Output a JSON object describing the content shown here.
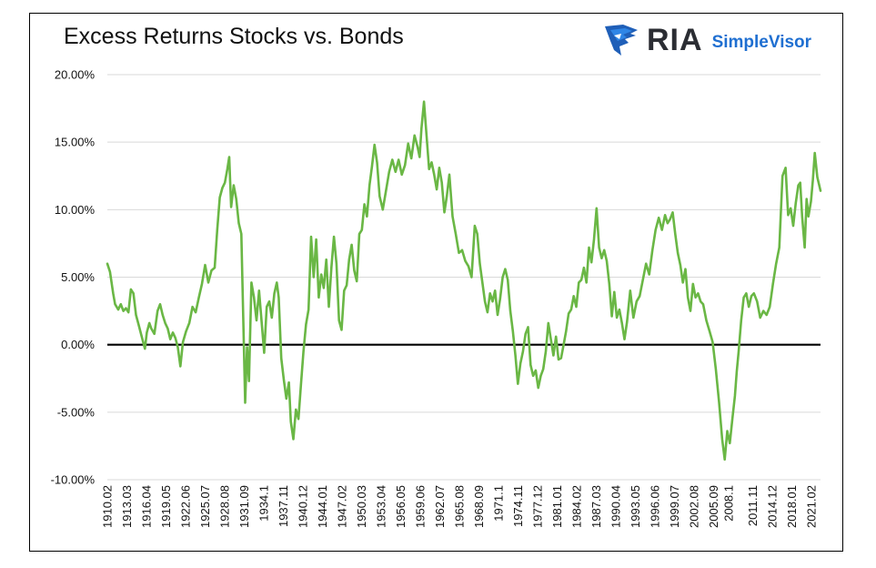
{
  "header": {
    "title": "Excess Returns Stocks vs. Bonds",
    "logo_primary": "RIA",
    "logo_secondary": "SimpleVisor"
  },
  "colors": {
    "line": "#6ab745",
    "zero_line": "#000000",
    "grid": "#d9d9d9",
    "logo_blue": "#1f6fd1",
    "logo_dark": "#2b2d33"
  },
  "chart_data": {
    "type": "line",
    "title": "Excess Returns Stocks vs. Bonds",
    "xlabel": "",
    "ylabel": "",
    "ylim": [
      -10,
      20
    ],
    "y_ticks": [
      {
        "value": 20,
        "label": "20.00%"
      },
      {
        "value": 15,
        "label": "15.00%"
      },
      {
        "value": 10,
        "label": "10.00%"
      },
      {
        "value": 5,
        "label": "5.00%"
      },
      {
        "value": 0,
        "label": "0.00%"
      },
      {
        "value": -5,
        "label": "-5.00%"
      },
      {
        "value": -10,
        "label": "-10.00%"
      }
    ],
    "x_range": [
      1910.08,
      2022.5
    ],
    "x_ticks": [
      {
        "value": 1910.08,
        "label": "1910.02"
      },
      {
        "value": 1913.17,
        "label": "1913.03"
      },
      {
        "value": 1916.25,
        "label": "1916.04"
      },
      {
        "value": 1919.33,
        "label": "1919.05"
      },
      {
        "value": 1922.42,
        "label": "1922.06"
      },
      {
        "value": 1925.5,
        "label": "1925.07"
      },
      {
        "value": 1928.58,
        "label": "1928.08"
      },
      {
        "value": 1931.67,
        "label": "1931.09"
      },
      {
        "value": 1934.75,
        "label": "1934.1"
      },
      {
        "value": 1937.83,
        "label": "1937.11"
      },
      {
        "value": 1940.92,
        "label": "1940.12"
      },
      {
        "value": 1944.0,
        "label": "1944.01"
      },
      {
        "value": 1947.08,
        "label": "1947.02"
      },
      {
        "value": 1950.17,
        "label": "1950.03"
      },
      {
        "value": 1953.25,
        "label": "1953.04"
      },
      {
        "value": 1956.33,
        "label": "1956.05"
      },
      {
        "value": 1959.42,
        "label": "1959.06"
      },
      {
        "value": 1962.5,
        "label": "1962.07"
      },
      {
        "value": 1965.58,
        "label": "1965.08"
      },
      {
        "value": 1968.67,
        "label": "1968.09"
      },
      {
        "value": 1971.75,
        "label": "1971.1"
      },
      {
        "value": 1974.83,
        "label": "1974.11"
      },
      {
        "value": 1977.92,
        "label": "1977.12"
      },
      {
        "value": 1981.0,
        "label": "1981.01"
      },
      {
        "value": 1984.08,
        "label": "1984.02"
      },
      {
        "value": 1987.17,
        "label": "1987.03"
      },
      {
        "value": 1990.25,
        "label": "1990.04"
      },
      {
        "value": 1993.33,
        "label": "1993.05"
      },
      {
        "value": 1996.42,
        "label": "1996.06"
      },
      {
        "value": 1999.5,
        "label": "1999.07"
      },
      {
        "value": 2002.58,
        "label": "2002.08"
      },
      {
        "value": 2005.67,
        "label": "2005.09"
      },
      {
        "value": 2008.0,
        "label": "2008.1"
      },
      {
        "value": 2011.83,
        "label": "2011.11"
      },
      {
        "value": 2014.92,
        "label": "2014.12"
      },
      {
        "value": 2018.0,
        "label": "2018.01"
      },
      {
        "value": 2021.08,
        "label": "2021.02"
      }
    ],
    "grid": true,
    "legend": "none",
    "series": [
      {
        "x": [
          1910.08,
          1910.5,
          1911.0,
          1911.3,
          1911.8,
          1912.2,
          1912.6,
          1913.0,
          1913.4,
          1913.8,
          1914.2,
          1914.6,
          1915.0,
          1915.5,
          1916.0,
          1916.3,
          1916.7,
          1917.0,
          1917.5,
          1918.0,
          1918.4,
          1918.8,
          1919.2,
          1919.6,
          1920.0,
          1920.4,
          1920.8,
          1921.2,
          1921.6,
          1922.0,
          1922.5,
          1923.0,
          1923.5,
          1924.0,
          1924.5,
          1925.0,
          1925.5,
          1926.0,
          1926.5,
          1927.0,
          1927.4,
          1927.8,
          1928.2,
          1928.6,
          1929.0,
          1929.3,
          1929.6,
          1930.0,
          1930.4,
          1930.8,
          1931.2,
          1931.5,
          1931.8,
          1932.1,
          1932.4,
          1932.8,
          1933.2,
          1933.6,
          1934.0,
          1934.4,
          1934.8,
          1935.2,
          1935.6,
          1936.0,
          1936.4,
          1936.8,
          1937.1,
          1937.5,
          1937.9,
          1938.3,
          1938.7,
          1939.0,
          1939.4,
          1939.8,
          1940.2,
          1940.6,
          1941.0,
          1941.4,
          1941.8,
          1942.2,
          1942.6,
          1943.0,
          1943.4,
          1943.8,
          1944.2,
          1944.6,
          1945.0,
          1945.4,
          1945.8,
          1946.2,
          1946.6,
          1947.0,
          1947.4,
          1947.8,
          1948.2,
          1948.6,
          1949.0,
          1949.4,
          1949.8,
          1950.2,
          1950.6,
          1951.0,
          1951.4,
          1951.8,
          1952.2,
          1952.6,
          1953.0,
          1953.5,
          1954.0,
          1954.5,
          1955.0,
          1955.5,
          1956.0,
          1956.5,
          1957.0,
          1957.5,
          1958.0,
          1958.5,
          1959.0,
          1959.3,
          1959.6,
          1960.0,
          1960.4,
          1960.8,
          1961.2,
          1961.6,
          1962.0,
          1962.4,
          1962.8,
          1963.2,
          1963.6,
          1964.0,
          1964.5,
          1965.0,
          1965.5,
          1966.0,
          1966.5,
          1967.0,
          1967.5,
          1968.0,
          1968.4,
          1968.8,
          1969.2,
          1969.6,
          1970.0,
          1970.4,
          1970.8,
          1971.2,
          1971.6,
          1972.0,
          1972.4,
          1972.8,
          1973.2,
          1973.6,
          1974.0,
          1974.4,
          1974.8,
          1975.2,
          1975.6,
          1976.0,
          1976.4,
          1976.8,
          1977.2,
          1977.6,
          1978.0,
          1978.4,
          1978.8,
          1979.2,
          1979.6,
          1980.0,
          1980.4,
          1980.8,
          1981.2,
          1981.6,
          1982.0,
          1982.4,
          1982.8,
          1983.2,
          1983.6,
          1984.0,
          1984.4,
          1984.8,
          1985.2,
          1985.6,
          1986.0,
          1986.4,
          1986.8,
          1987.2,
          1987.6,
          1988.0,
          1988.4,
          1988.8,
          1989.2,
          1989.6,
          1990.0,
          1990.4,
          1990.8,
          1991.2,
          1991.6,
          1992.0,
          1992.5,
          1993.0,
          1993.5,
          1994.0,
          1994.5,
          1995.0,
          1995.5,
          1996.0,
          1996.5,
          1997.0,
          1997.5,
          1998.0,
          1998.4,
          1998.8,
          1999.2,
          1999.6,
          2000.0,
          2000.4,
          2000.8,
          2001.2,
          2001.6,
          2002.0,
          2002.4,
          2002.8,
          2003.2,
          2003.6,
          2004.0,
          2004.5,
          2005.0,
          2005.5,
          2006.0,
          2006.5,
          2007.0,
          2007.4,
          2007.8,
          2008.2,
          2008.6,
          2009.0,
          2009.3,
          2009.6,
          2010.0,
          2010.4,
          2010.8,
          2011.2,
          2011.6,
          2012.0,
          2012.5,
          2013.0,
          2013.5,
          2014.0,
          2014.5,
          2015.0,
          2015.5,
          2016.0,
          2016.5,
          2017.0,
          2017.4,
          2017.8,
          2018.2,
          2018.6,
          2019.0,
          2019.3,
          2019.6,
          2020.0,
          2020.3,
          2020.6,
          2021.0,
          2021.3,
          2021.6,
          2022.0,
          2022.5
        ],
        "values": [
          6.0,
          5.4,
          3.8,
          3.0,
          2.6,
          3.0,
          2.5,
          2.7,
          2.4,
          4.1,
          3.8,
          2.2,
          1.5,
          0.6,
          -0.3,
          0.9,
          1.6,
          1.2,
          0.8,
          2.5,
          3.0,
          2.2,
          1.6,
          1.2,
          0.4,
          0.9,
          0.5,
          -0.2,
          -1.6,
          0.2,
          1.0,
          1.6,
          2.8,
          2.4,
          3.5,
          4.5,
          5.9,
          4.6,
          5.5,
          5.7,
          8.5,
          10.9,
          11.6,
          12.0,
          13.0,
          13.9,
          10.2,
          11.8,
          10.8,
          9.0,
          8.2,
          2.0,
          -4.3,
          -0.2,
          -2.7,
          4.6,
          3.5,
          1.8,
          4.0,
          1.7,
          -0.6,
          2.8,
          3.2,
          2.0,
          3.8,
          4.6,
          3.5,
          -1.0,
          -2.6,
          -4.0,
          -2.8,
          -5.7,
          -7.0,
          -4.8,
          -5.5,
          -3.0,
          -0.5,
          1.5,
          2.6,
          8.0,
          5.0,
          7.8,
          3.5,
          5.2,
          4.2,
          6.3,
          2.8,
          5.7,
          8.0,
          6.0,
          1.8,
          1.1,
          4.0,
          4.4,
          6.3,
          7.4,
          5.5,
          4.7,
          8.2,
          8.5,
          10.4,
          9.5,
          11.8,
          13.2,
          14.8,
          13.5,
          11.0,
          10.0,
          11.4,
          12.8,
          13.7,
          12.8,
          13.7,
          12.6,
          13.3,
          14.9,
          13.8,
          15.5,
          14.6,
          13.9,
          16.0,
          18.0,
          15.5,
          13.0,
          13.5,
          12.6,
          11.5,
          13.1,
          12.0,
          9.8,
          11.0,
          12.6,
          9.5,
          8.2,
          6.8,
          7.0,
          6.2,
          5.8,
          5.0,
          8.8,
          8.2,
          6.0,
          4.6,
          3.2,
          2.4,
          3.8,
          3.2,
          4.0,
          2.2,
          3.4,
          5.0,
          5.6,
          4.8,
          2.5,
          1.0,
          -0.8,
          -2.9,
          -1.4,
          -0.5,
          0.8,
          1.3,
          -1.5,
          -2.3,
          -1.9,
          -3.2,
          -2.3,
          -1.8,
          -0.5,
          1.6,
          0.4,
          -0.8,
          0.6,
          -1.1,
          -1.0,
          0.0,
          1.0,
          2.3,
          2.6,
          3.6,
          2.8,
          4.6,
          4.8,
          5.7,
          4.6,
          7.2,
          6.1,
          7.8,
          10.1,
          7.2,
          6.4,
          7.0,
          6.2,
          4.5,
          2.1,
          3.9,
          2.0,
          2.6,
          1.6,
          0.4,
          1.7,
          4.0,
          2.0,
          3.2,
          3.6,
          4.8,
          6.0,
          5.2,
          7.0,
          8.5,
          9.4,
          8.5,
          9.6,
          9.0,
          9.3,
          9.8,
          8.2,
          6.8,
          5.9,
          4.6,
          5.6,
          3.5,
          2.5,
          4.5,
          3.5,
          3.8,
          3.2,
          3.0,
          1.8,
          1.0,
          0.2,
          -1.8,
          -4.2,
          -7.0,
          -8.5,
          -6.4,
          -7.3,
          -5.5,
          -3.8,
          -2.0,
          -0.5,
          1.8,
          3.5,
          3.8,
          2.8,
          3.6,
          3.8,
          3.2,
          2.0,
          2.5,
          2.2,
          2.8,
          4.5,
          6.0,
          7.2,
          12.5,
          13.1,
          9.6,
          10.1,
          8.8,
          10.5,
          11.8,
          12.0,
          9.5,
          7.2,
          10.8,
          9.5,
          10.6,
          12.2,
          14.2,
          12.4,
          11.4
        ]
      }
    ]
  }
}
